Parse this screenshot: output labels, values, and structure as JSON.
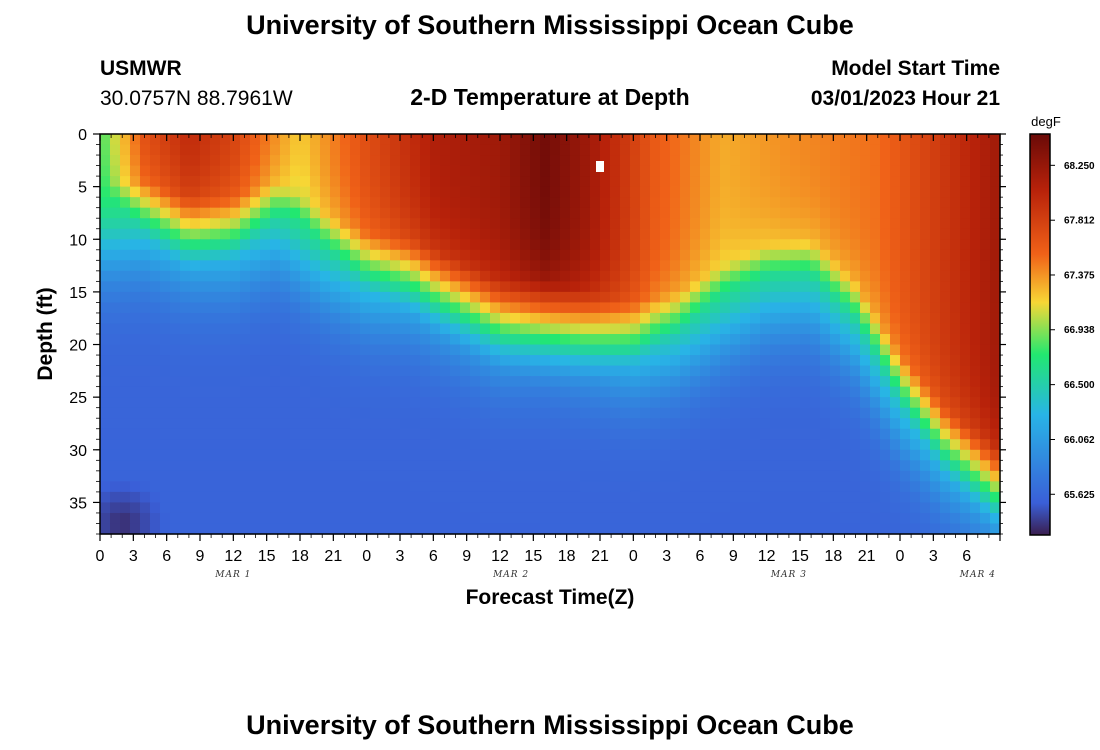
{
  "header": {
    "title": "University of Southern Mississippi Ocean Cube",
    "station": "USMWR",
    "coords": "30.0757N  88.7961W",
    "subtitle": "2-D Temperature at Depth",
    "model_label": "Model Start Time",
    "model_time": "03/01/2023 Hour 21"
  },
  "footer": {
    "title": "University of Southern Mississippi Ocean Cube"
  },
  "colors": {
    "cold": "#3a1e4f",
    "blue": "#3a5fd8",
    "cyan": "#28b4e6",
    "green": "#22e870",
    "yellow": "#f7d735",
    "orange": "#f06218",
    "red": "#b8220a",
    "dark_red": "#6a0a08"
  },
  "chart_data": {
    "type": "heatmap",
    "title": "2-D Temperature at Depth",
    "xlabel": "Forecast Time(Z)",
    "ylabel": "Depth (ft)",
    "x_hours_range": [
      0,
      81
    ],
    "depth_range_ft": [
      0,
      38
    ],
    "x_tick_hours": [
      0,
      3,
      6,
      9,
      12,
      15,
      18,
      21,
      24,
      27,
      30,
      33,
      36,
      39,
      42,
      45,
      48,
      51,
      54,
      57,
      60,
      63,
      66,
      69,
      72,
      75,
      78,
      81
    ],
    "x_tick_labels": [
      "0",
      "3",
      "6",
      "9",
      "12",
      "15",
      "18",
      "21",
      "0",
      "3",
      "6",
      "9",
      "12",
      "15",
      "18",
      "21",
      "0",
      "3",
      "6",
      "9",
      "12",
      "15",
      "18",
      "21",
      "0",
      "3",
      "6"
    ],
    "y_ticks": [
      0,
      5,
      10,
      15,
      20,
      25,
      30,
      35
    ],
    "y_tick_labels": [
      "0",
      "5",
      "10",
      "15",
      "20",
      "25",
      "30",
      "35"
    ],
    "day_labels": [
      {
        "label": "MAR 1",
        "hour": 12
      },
      {
        "label": "MAR 2",
        "hour": 37
      },
      {
        "label": "MAR 3",
        "hour": 62
      },
      {
        "label": "MAR 4",
        "hour": 79
      }
    ],
    "colorbar": {
      "unit": "degF",
      "min": 65.3,
      "max": 68.5,
      "tick_values": [
        68.25,
        67.812,
        67.375,
        66.938,
        66.5,
        66.062,
        65.625
      ],
      "tick_labels": [
        "68.250",
        "67.812",
        "67.375",
        "66.938",
        "66.500",
        "66.062",
        "65.625"
      ]
    },
    "thermocline_hours": [
      0,
      4,
      8,
      12,
      16,
      20,
      24,
      28,
      32,
      36,
      40,
      44,
      48,
      52,
      56,
      60,
      64,
      68,
      72,
      76,
      81
    ],
    "thermocline_depth_ft": [
      11,
      10.5,
      12,
      12,
      10.5,
      13.5,
      15.5,
      16,
      18,
      20,
      20,
      21,
      22,
      21,
      18.5,
      16.5,
      16,
      20,
      27,
      32,
      36
    ],
    "surface_temp_hours": [
      0,
      4,
      8,
      12,
      18,
      24,
      30,
      36,
      40,
      44,
      50,
      56,
      62,
      70,
      81
    ],
    "surface_temp_degf": [
      66.8,
      67.7,
      68.0,
      67.8,
      67.2,
      67.7,
      68.1,
      68.2,
      68.45,
      68.2,
      67.6,
      67.3,
      67.4,
      67.5,
      68.2
    ],
    "deep_temp_degf": 65.6,
    "cold_pool": {
      "hour": 2,
      "depth_ft": 37,
      "temp_degf": 65.35
    }
  }
}
